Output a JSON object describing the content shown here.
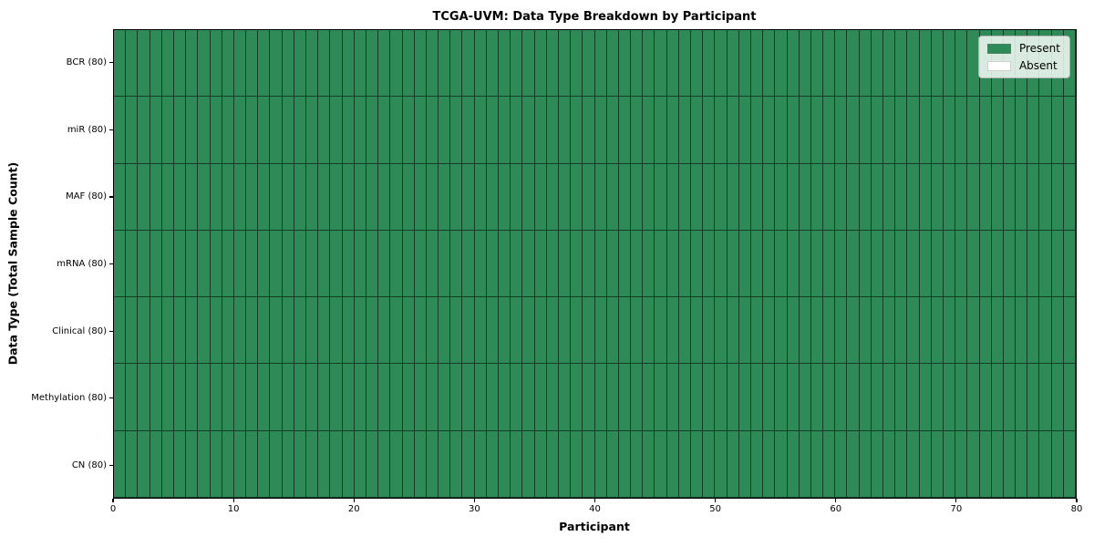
{
  "chart_data": {
    "type": "heatmap",
    "title": "TCGA-UVM: Data Type Breakdown by Participant",
    "xlabel": "Participant",
    "ylabel": "Data Type (Total Sample Count)",
    "n_participants": 80,
    "xlim": [
      0,
      80
    ],
    "x_ticks": [
      0,
      10,
      20,
      30,
      40,
      50,
      60,
      70,
      80
    ],
    "rows_top_to_bottom": [
      "BCR (80)",
      "miR (80)",
      "MAF (80)",
      "mRNA (80)",
      "Clinical (80)",
      "Methylation (80)",
      "CN (80)"
    ],
    "series": [
      {
        "name": "BCR (80)",
        "present_count": 80,
        "absent_count": 0
      },
      {
        "name": "miR (80)",
        "present_count": 80,
        "absent_count": 0
      },
      {
        "name": "MAF (80)",
        "present_count": 80,
        "absent_count": 0
      },
      {
        "name": "mRNA (80)",
        "present_count": 80,
        "absent_count": 0
      },
      {
        "name": "Clinical (80)",
        "present_count": 80,
        "absent_count": 0
      },
      {
        "name": "Methylation (80)",
        "present_count": 80,
        "absent_count": 0
      },
      {
        "name": "CN (80)",
        "present_count": 80,
        "absent_count": 0
      }
    ],
    "colors": {
      "present": "#2e8b57",
      "absent": "#ffffff",
      "cell_border": "rgba(10,30,18,0.72)"
    },
    "legend": {
      "position": "upper right",
      "entries": [
        {
          "label": "Present",
          "color": "#2e8b57"
        },
        {
          "label": "Absent",
          "color": "#ffffff"
        }
      ]
    },
    "grid": "cell borders on",
    "values_description": "All 7 data types are Present for all 80 participants"
  }
}
